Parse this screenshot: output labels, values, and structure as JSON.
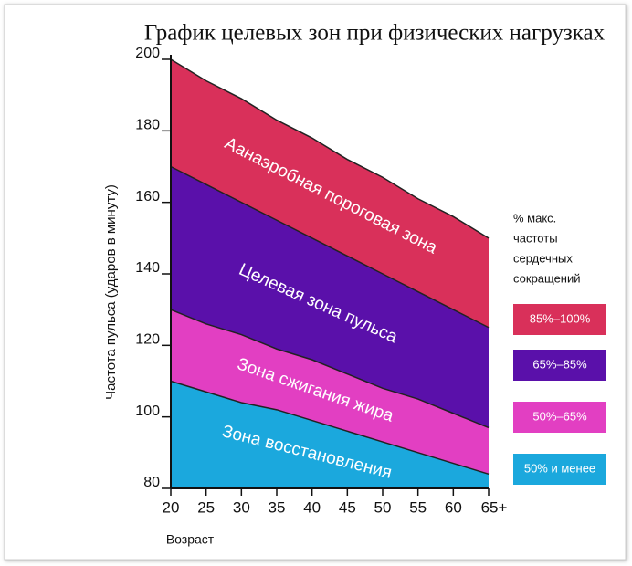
{
  "chart_data": {
    "type": "area",
    "title": "График целевых зон при физических нагрузках",
    "x_label": "Возраст",
    "y_label": "Частота пульса (ударов в минуту)",
    "categories": [
      "20",
      "25",
      "30",
      "35",
      "40",
      "45",
      "50",
      "55",
      "60",
      "65+"
    ],
    "ylim": [
      80,
      200
    ],
    "yticks": [
      80,
      100,
      120,
      140,
      160,
      180,
      200
    ],
    "legend_title": [
      "% макс.",
      "частоты",
      "сердечных",
      "сокращений"
    ],
    "legend_position": "right",
    "series": [
      {
        "name": "85%–100%",
        "color": "#d9305a",
        "zone_label": "Аанаэробная пороговая зона",
        "values": [
          200,
          194,
          189,
          183,
          178,
          172,
          167,
          161,
          156,
          150
        ]
      },
      {
        "name": "65%–85%",
        "color": "#5a10aa",
        "zone_label": "Целевая зона пульса",
        "values": [
          170,
          165,
          160,
          155,
          150,
          145,
          140,
          135,
          130,
          125
        ]
      },
      {
        "name": "50%–65%",
        "color": "#e23fc2",
        "zone_label": "Зона сжигания жира",
        "values": [
          130,
          126,
          123,
          119,
          116,
          112,
          108,
          105,
          101,
          97
        ]
      },
      {
        "name": "50% и менее",
        "color": "#1ba8dd",
        "zone_label": "Зона восстановления",
        "values": [
          110,
          107,
          104,
          102,
          99,
          96,
          93,
          90,
          87,
          84
        ]
      }
    ]
  }
}
